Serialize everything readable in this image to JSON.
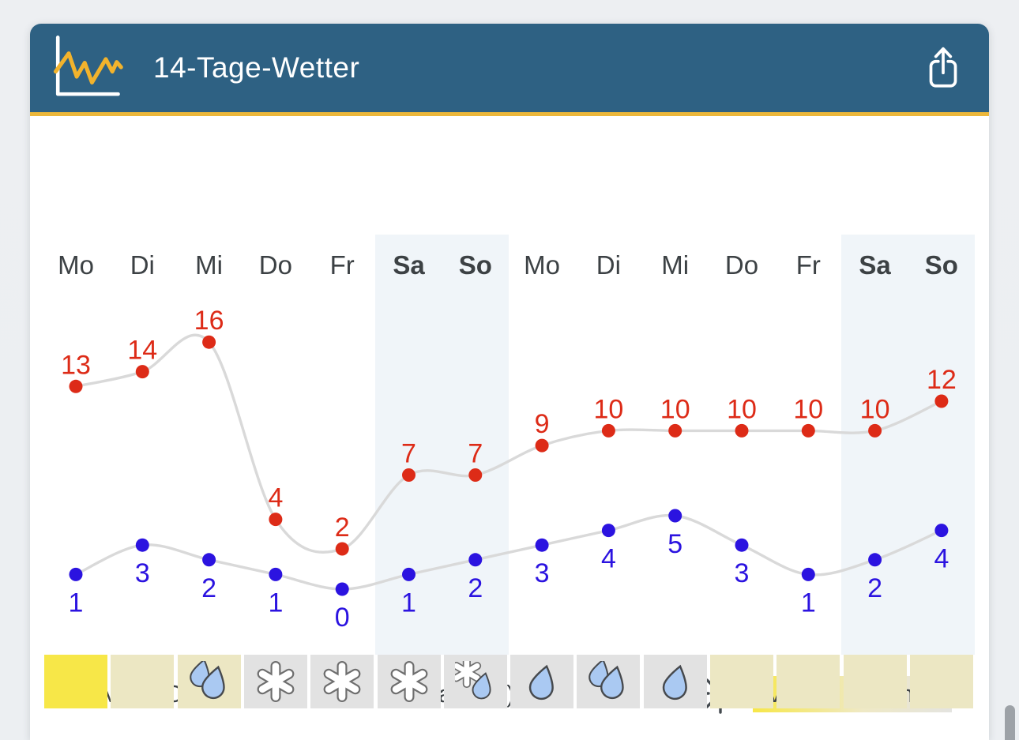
{
  "header": {
    "title": "14-Tage-Wetter"
  },
  "legend": {
    "min_label": "Min (°C)",
    "max_label": "Max (°C)",
    "sun_much": "viel",
    "sun_little": "wenig"
  },
  "days": [
    {
      "label": "Mo",
      "weekend": false,
      "max": 13,
      "min": 1,
      "sun": "high",
      "precip": "none"
    },
    {
      "label": "Di",
      "weekend": false,
      "max": 14,
      "min": 3,
      "sun": "medium",
      "precip": "none"
    },
    {
      "label": "Mi",
      "weekend": false,
      "max": 16,
      "min": 2,
      "sun": "medium",
      "precip": "rain"
    },
    {
      "label": "Do",
      "weekend": false,
      "max": 4,
      "min": 1,
      "sun": "low",
      "precip": "snow"
    },
    {
      "label": "Fr",
      "weekend": false,
      "max": 2,
      "min": 0,
      "sun": "low",
      "precip": "snow"
    },
    {
      "label": "Sa",
      "weekend": true,
      "max": 7,
      "min": 1,
      "sun": "low",
      "precip": "snow"
    },
    {
      "label": "So",
      "weekend": true,
      "max": 7,
      "min": 2,
      "sun": "low",
      "precip": "sleet"
    },
    {
      "label": "Mo",
      "weekend": false,
      "max": 9,
      "min": 3,
      "sun": "low",
      "precip": "rain-light"
    },
    {
      "label": "Di",
      "weekend": false,
      "max": 10,
      "min": 4,
      "sun": "low",
      "precip": "rain"
    },
    {
      "label": "Mi",
      "weekend": false,
      "max": 10,
      "min": 5,
      "sun": "low",
      "precip": "rain-light"
    },
    {
      "label": "Do",
      "weekend": false,
      "max": 10,
      "min": 3,
      "sun": "medium",
      "precip": "none"
    },
    {
      "label": "Fr",
      "weekend": false,
      "max": 10,
      "min": 1,
      "sun": "medium",
      "precip": "none"
    },
    {
      "label": "Sa",
      "weekend": true,
      "max": 10,
      "min": 2,
      "sun": "medium",
      "precip": "none"
    },
    {
      "label": "So",
      "weekend": true,
      "max": 12,
      "min": 4,
      "sun": "medium",
      "precip": "none"
    }
  ],
  "chart_data": {
    "type": "line",
    "categories": [
      "Mo",
      "Di",
      "Mi",
      "Do",
      "Fr",
      "Sa",
      "So",
      "Mo",
      "Di",
      "Mi",
      "Do",
      "Fr",
      "Sa",
      "So"
    ],
    "series": [
      {
        "name": "Max (°C)",
        "color": "#dd2b17",
        "values": [
          13,
          14,
          16,
          4,
          2,
          7,
          7,
          9,
          10,
          10,
          10,
          10,
          10,
          12
        ]
      },
      {
        "name": "Min (°C)",
        "color": "#2b13e0",
        "values": [
          1,
          3,
          2,
          1,
          0,
          1,
          2,
          3,
          4,
          5,
          3,
          1,
          2,
          4
        ]
      }
    ],
    "title": "14-Tage-Wetter",
    "xlabel": "",
    "ylabel": "",
    "grid": false,
    "legend_position": "bottom",
    "weekend_highlight_indexes": [
      5,
      6,
      12,
      13
    ],
    "sun_intensity_row": [
      "high",
      "medium",
      "medium",
      "low",
      "low",
      "low",
      "low",
      "low",
      "low",
      "low",
      "medium",
      "medium",
      "medium",
      "medium"
    ],
    "precip_row": [
      "none",
      "none",
      "rain",
      "snow",
      "snow",
      "snow",
      "sleet",
      "rain-light",
      "rain",
      "rain-light",
      "none",
      "none",
      "none",
      "none"
    ]
  },
  "colors": {
    "header_bg": "#2e6183",
    "accent": "#ecb73a",
    "max_series": "#dd2b17",
    "min_series": "#2b13e0",
    "curve": "#d9d9d9",
    "weekend_band": "#f0f5f9",
    "sun_high": "#f7e748",
    "sun_medium": "#ece7c3",
    "sun_low": "#e2e2e2",
    "drop_fill": "#aac9f2",
    "text": "#3c4144"
  }
}
